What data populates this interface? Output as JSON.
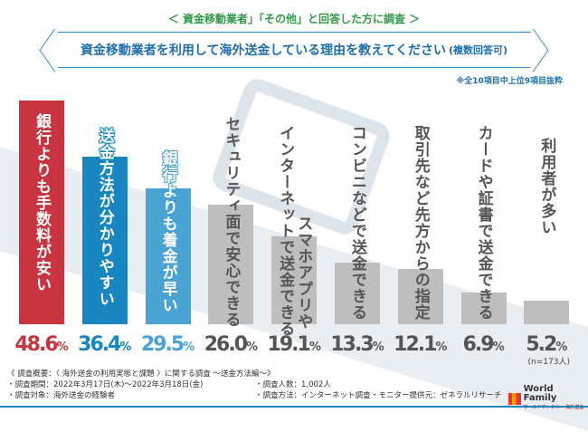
{
  "header": {
    "survey_target": "＜ 資金移動業者」「その他」と回答した方に調査 ＞",
    "question": "資金移動業者を利用して海外送金している理由を教えてください",
    "question_note": "(複数回答可)",
    "selection_note": "※全10項目中上位9項目抜粋"
  },
  "chart_data": {
    "type": "bar",
    "unit": "%",
    "ylim": [
      0,
      50
    ],
    "grid": false,
    "categories": [
      "銀行よりも手数料が安い",
      "送金方法が分かりやすい",
      "銀行よりも着金が早い",
      "セキュリティ面で安心できる",
      "スマホアプリやインターネットで送金できる",
      "コンビニなどで送金できる",
      "取引先など先方からの指定",
      "カードや証書で送金できる",
      "利用者が多い"
    ],
    "label_lines": [
      [
        "銀行よりも手数料が安い"
      ],
      [
        "送金方法が分かりやすい"
      ],
      [
        "銀行よりも着金が早い"
      ],
      [
        "セキュリティ面で安心できる"
      ],
      [
        "スマホアプリや",
        "インターネットで送金できる"
      ],
      [
        "コンビニなどで送金できる"
      ],
      [
        "取引先など先方からの指定"
      ],
      [
        "カードや証書で送金できる"
      ],
      [
        "利用者が多い"
      ]
    ],
    "values": [
      48.6,
      36.4,
      29.5,
      26.0,
      19.1,
      13.3,
      12.1,
      6.9,
      5.2
    ],
    "value_labels": [
      "48.6",
      "36.4",
      "29.5",
      "26.0",
      "19.1",
      "13.3",
      "12.1",
      "6.9",
      "5.2"
    ],
    "colors": [
      "#c8343f",
      "#1a86c0",
      "#4aa3d3",
      "#bebebe",
      "#bebebe",
      "#bebebe",
      "#bebebe",
      "#bebebe",
      "#bebebe"
    ],
    "sample": "(n=173人)"
  },
  "footer": {
    "overview": "《 調査概要：〈 海外送金の利用実態と課題 〉に関する調査 ～送金方法編～》",
    "period": "・調査期間：2022年3月17日(木)～2022年3月18日(金)",
    "target": "・調査対象：海外送金の経験者",
    "count": "・調査人数：1,002人",
    "method": "・調査方法：インターネット調査",
    "provider": "・モニター提供元：ゼネラルリサーチ",
    "logo": "World Family",
    "logo_sub": "ワールドファミリー 海外送金"
  }
}
